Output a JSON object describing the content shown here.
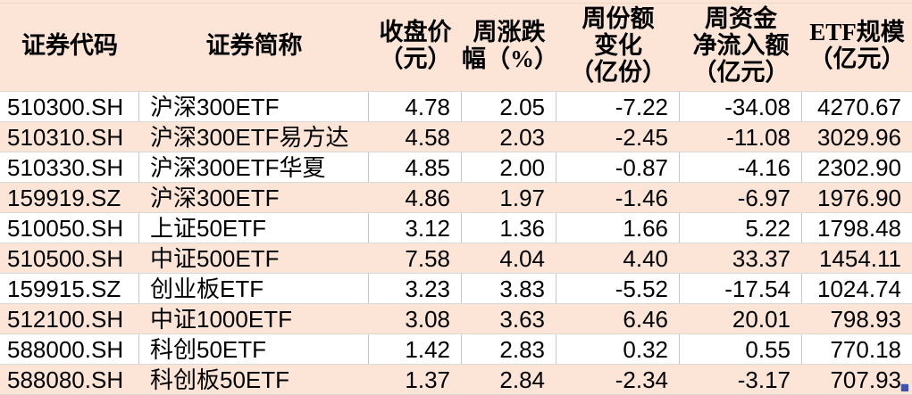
{
  "table": {
    "columns": [
      {
        "key": "code",
        "label": "证券代码"
      },
      {
        "key": "name",
        "label": "证券简称"
      },
      {
        "key": "close",
        "label": "收盘价\n（元）"
      },
      {
        "key": "chg",
        "label": "周涨跌\n幅（%）"
      },
      {
        "key": "share",
        "label": "周份额\n变化\n（亿份）"
      },
      {
        "key": "flow",
        "label": "周资金\n净流入额\n（亿元）"
      },
      {
        "key": "aum",
        "label": "ETF规模\n（亿元）"
      }
    ],
    "rows": [
      [
        "510300.SH",
        "沪深300ETF",
        "4.78",
        "2.05",
        "-7.22",
        "-34.08",
        "4270.67"
      ],
      [
        "510310.SH",
        "沪深300ETF易方达",
        "4.58",
        "2.03",
        "-2.45",
        "-11.08",
        "3029.96"
      ],
      [
        "510330.SH",
        "沪深300ETF华夏",
        "4.85",
        "2.00",
        "-0.87",
        "-4.16",
        "2302.90"
      ],
      [
        "159919.SZ",
        "沪深300ETF",
        "4.86",
        "1.97",
        "-1.46",
        "-6.97",
        "1976.90"
      ],
      [
        "510050.SH",
        "上证50ETF",
        "3.12",
        "1.36",
        "1.66",
        "5.22",
        "1798.48"
      ],
      [
        "510500.SH",
        "中证500ETF",
        "7.58",
        "4.04",
        "4.40",
        "33.37",
        "1454.11"
      ],
      [
        "159915.SZ",
        "创业板ETF",
        "3.23",
        "3.83",
        "-5.52",
        "-17.54",
        "1024.74"
      ],
      [
        "512100.SH",
        "中证1000ETF",
        "3.08",
        "3.63",
        "6.46",
        "20.01",
        "798.93"
      ],
      [
        "588000.SH",
        "科创50ETF",
        "1.42",
        "2.83",
        "0.32",
        "0.55",
        "770.18"
      ],
      [
        "588080.SH",
        "科创板50ETF",
        "1.37",
        "2.84",
        "-2.34",
        "-3.17",
        "707.93"
      ]
    ]
  },
  "colors": {
    "band": "#fce4d6",
    "grid-h": "#d9d9d9",
    "grid-v": "#c6c6c6",
    "text": "#000000",
    "handle": "#4154ad",
    "handle-halo": "#b9c4ea",
    "artifact": "#f1d7c5"
  },
  "icons": {
    "fill_handle": "spreadsheet-selection-fill-handle"
  }
}
